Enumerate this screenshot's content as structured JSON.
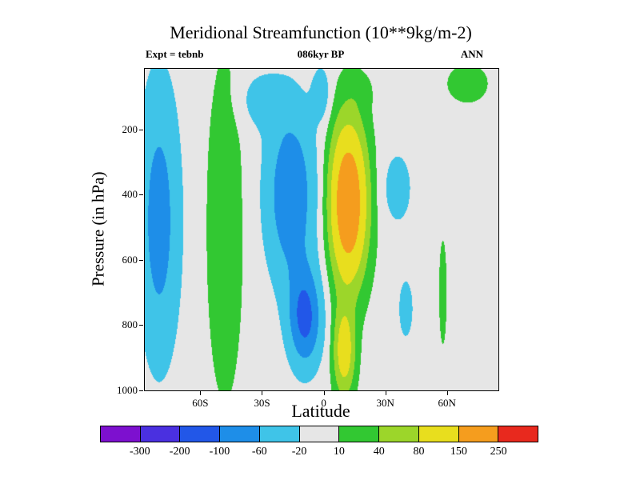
{
  "chart": {
    "title": "Meridional Streamfunction (10**9kg/m-2)",
    "annotations": {
      "experiment": "Expt = tebnb",
      "time": "086kyr BP",
      "season": "ANN"
    },
    "xlabel": "Latitude",
    "ylabel": "Pressure (in hPa)"
  },
  "chart_data": {
    "type": "filled_contour",
    "title": "Meridional Streamfunction (10**9kg/m-2)",
    "annotations": {
      "experiment": "Expt = tebnb",
      "time": "086kyr BP",
      "season": "ANN"
    },
    "xlabel": "Latitude",
    "ylabel": "Pressure (in hPa)",
    "x_axis": {
      "range_lat_deg": [
        -87,
        85
      ],
      "ticks": [
        {
          "lat": -60,
          "label": "60S"
        },
        {
          "lat": -30,
          "label": "30S"
        },
        {
          "lat": 0,
          "label": "0"
        },
        {
          "lat": 30,
          "label": "30N"
        },
        {
          "lat": 60,
          "label": "60N"
        }
      ]
    },
    "y_axis": {
      "range_hpa": [
        15,
        1000
      ],
      "ticks": [
        {
          "p": 200,
          "label": "200"
        },
        {
          "p": 400,
          "label": "400"
        },
        {
          "p": 600,
          "label": "600"
        },
        {
          "p": 800,
          "label": "800"
        },
        {
          "p": 1000,
          "label": "1000"
        }
      ]
    },
    "levels": [
      -300,
      -200,
      -100,
      -60,
      -20,
      10,
      40,
      80,
      150,
      250
    ],
    "colors": [
      "#7d10cf",
      "#4a30e0",
      "#2257e8",
      "#1e8ee8",
      "#3fc4e8",
      "#e6e6e6",
      "#32c832",
      "#9cd62a",
      "#e8de1e",
      "#f59d1e",
      "#e8291e"
    ],
    "background_color": "#e6e6e6",
    "colorbar": {
      "labels": [
        "-300",
        "-200",
        "-100",
        "-60",
        "-20",
        "10",
        "40",
        "80",
        "150",
        "250"
      ]
    },
    "features": [
      {
        "region": "south polar column (~85S-65S), full depth",
        "sign": "negative",
        "approx_extreme": -80
      },
      {
        "region": "southern mid-latitude column (~60S-40S), full depth",
        "sign": "positive",
        "approx_extreme": 30
      },
      {
        "region": "southern tropical cell (~35S-0), core ~10S / 780 hPa",
        "sign": "negative",
        "approx_extreme": -130
      },
      {
        "region": "northern tropical cell (~0-28N), core ~12N / 420 hPa",
        "sign": "positive",
        "approx_extreme": 230
      },
      {
        "region": "northern mid-latitude patches (~30N-45N)",
        "sign": "negative",
        "approx_extreme": -38
      },
      {
        "region": "narrow column near 58N, ~550-850 hPa",
        "sign": "positive",
        "approx_extreme": 20
      },
      {
        "region": "arctic upper levels (~60N-80N, above 150 hPa)",
        "sign": "positive",
        "approx_extreme": 26
      }
    ],
    "field_model_gaussians": [
      {
        "amp": -80,
        "lat": -80,
        "p": 480,
        "sigma_lat": 10,
        "sigma_p": 420
      },
      {
        "amp": 36,
        "lat": -48,
        "p": 500,
        "sigma_lat": 8,
        "sigma_p": 470
      },
      {
        "amp": -95,
        "lat": -16,
        "p": 400,
        "sigma_lat": 12,
        "sigma_p": 270
      },
      {
        "amp": -110,
        "lat": -9,
        "p": 780,
        "sigma_lat": 8,
        "sigma_p": 150
      },
      {
        "amp": -35,
        "lat": -30,
        "p": 110,
        "sigma_lat": 11,
        "sigma_p": 85
      },
      {
        "amp": 235,
        "lat": 12,
        "p": 425,
        "sigma_lat": 8.5,
        "sigma_p": 230
      },
      {
        "amp": 115,
        "lat": 10,
        "p": 880,
        "sigma_lat": 5,
        "sigma_p": 130
      },
      {
        "amp": 12,
        "lat": 18,
        "p": 80,
        "sigma_lat": 7,
        "sigma_p": 60
      },
      {
        "amp": -40,
        "lat": -1,
        "p": 90,
        "sigma_lat": 4.5,
        "sigma_p": 85
      },
      {
        "amp": -38,
        "lat": 36,
        "p": 380,
        "sigma_lat": 7.5,
        "sigma_p": 120
      },
      {
        "amp": -30,
        "lat": 40,
        "p": 750,
        "sigma_lat": 5,
        "sigma_p": 130
      },
      {
        "amp": 20,
        "lat": 58,
        "p": 700,
        "sigma_lat": 2.2,
        "sigma_p": 190
      },
      {
        "amp": 26,
        "lat": 70,
        "p": 60,
        "sigma_lat": 10,
        "sigma_p": 60
      }
    ]
  }
}
